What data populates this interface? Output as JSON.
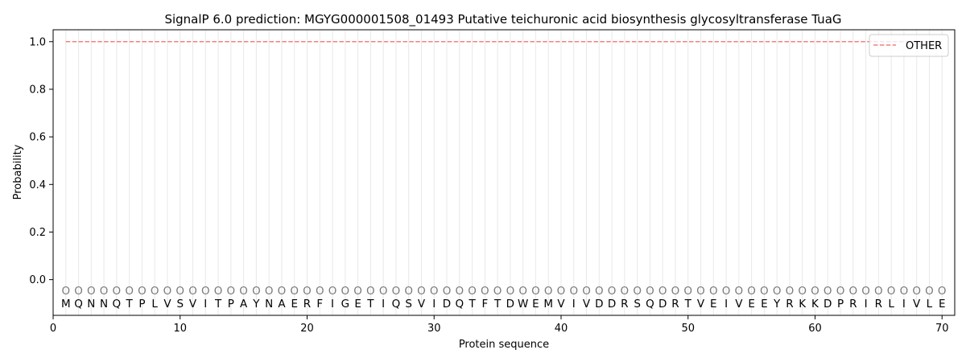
{
  "chart_data": {
    "type": "line",
    "title": "SignalP 6.0 prediction: MGYG000001508_01493 Putative teichuronic acid biosynthesis glycosyltransferase TuaG",
    "xlabel": "Protein sequence",
    "ylabel": "Probability",
    "xlim": [
      0,
      71
    ],
    "ylim": [
      -0.15,
      1.05
    ],
    "xticks": [
      0,
      10,
      20,
      30,
      40,
      50,
      60,
      70
    ],
    "yticks": [
      "0.0",
      "0.2",
      "0.4",
      "0.6",
      "0.8",
      "1.0"
    ],
    "grid": "vertical lines at each residue",
    "legend_position": "top-right",
    "sequence": [
      "M",
      "Q",
      "N",
      "N",
      "Q",
      "T",
      "P",
      "L",
      "V",
      "S",
      "V",
      "I",
      "T",
      "P",
      "A",
      "Y",
      "N",
      "A",
      "E",
      "R",
      "F",
      "I",
      "G",
      "E",
      "T",
      "I",
      "Q",
      "S",
      "V",
      "I",
      "D",
      "Q",
      "T",
      "F",
      "T",
      "D",
      "W",
      "E",
      "M",
      "V",
      "I",
      "V",
      "D",
      "D",
      "R",
      "S",
      "Q",
      "D",
      "R",
      "T",
      "V",
      "E",
      "I",
      "V",
      "E",
      "E",
      "Y",
      "R",
      "K",
      "K",
      "D",
      "P",
      "R",
      "I",
      "R",
      "L",
      "I",
      "V",
      "L",
      "E"
    ],
    "predicted_label": "O",
    "series": [
      {
        "name": "OTHER",
        "color": "#f08080",
        "style": "dashed",
        "x_start": 1,
        "x_end": 70,
        "value": 1.0
      }
    ]
  }
}
